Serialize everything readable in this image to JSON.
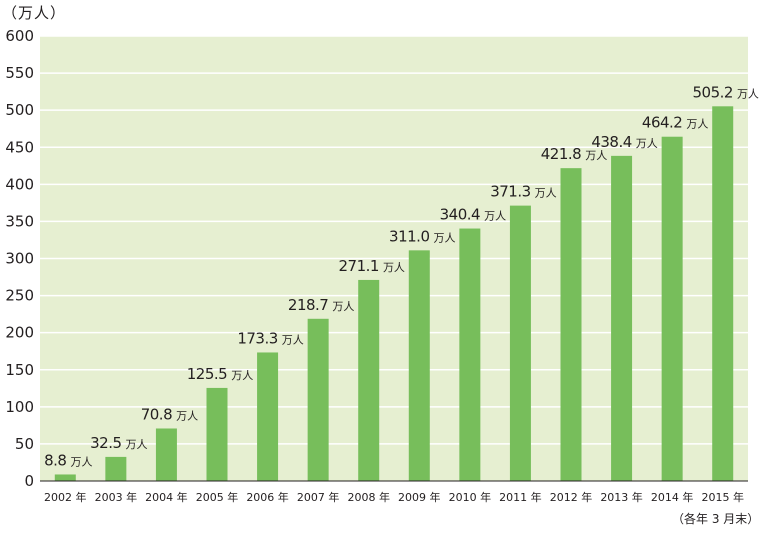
{
  "unit_label": "（万人）",
  "footnote": "（各年 3 月末）",
  "colors": {
    "plot_background": "#e6efd1",
    "bar": "#77be5b",
    "grid": "#ffffff",
    "axis": "#231f20"
  },
  "chart_data": {
    "type": "bar",
    "title": "",
    "xlabel": "",
    "ylabel": "（万人）",
    "ylim": [
      0,
      600
    ],
    "yticks": [
      0,
      50,
      100,
      150,
      200,
      250,
      300,
      350,
      400,
      450,
      500,
      550,
      600
    ],
    "grid": true,
    "categories": [
      "2002 年",
      "2003 年",
      "2004 年",
      "2005 年",
      "2006 年",
      "2007 年",
      "2008 年",
      "2009 年",
      "2010 年",
      "2011 年",
      "2012 年",
      "2013 年",
      "2014 年",
      "2015 年"
    ],
    "values": [
      8.8,
      32.5,
      70.8,
      125.5,
      173.3,
      218.7,
      271.1,
      311.0,
      340.4,
      371.3,
      421.8,
      438.4,
      464.2,
      505.2
    ],
    "data_labels": [
      "8.8",
      "32.5",
      "70.8",
      "125.5",
      "173.3",
      "218.7",
      "271.1",
      "311.0",
      "340.4",
      "371.3",
      "421.8",
      "438.4",
      "464.2",
      "505.2"
    ],
    "data_label_unit": "万人"
  }
}
